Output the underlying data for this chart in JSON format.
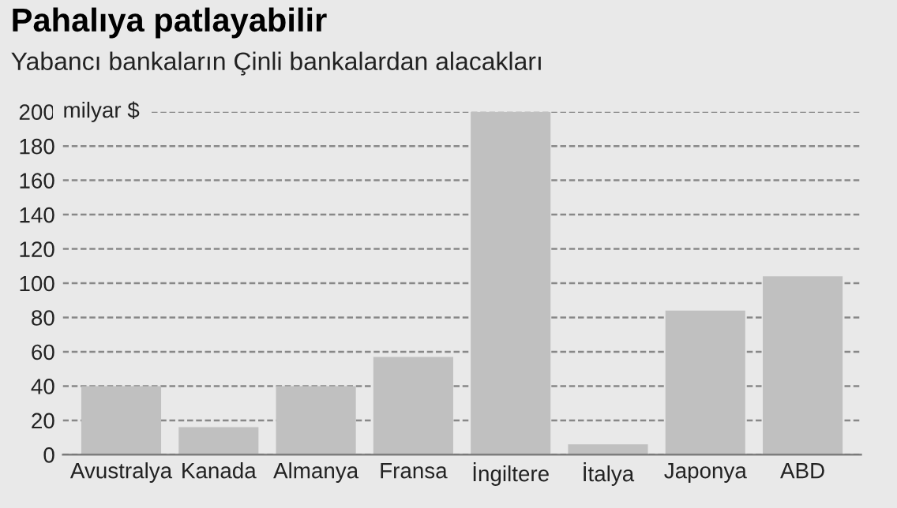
{
  "chart_data": {
    "type": "bar",
    "title": "Pahalıya patlayabilir",
    "subtitle": "Yabancı bankaların Çinli bankalardan alacakları",
    "ylabel": "milyar $",
    "categories": [
      "Avustralya",
      "Kanada",
      "Almanya",
      "Fransa",
      "İngiltere",
      "İtalya",
      "Japonya",
      "ABD"
    ],
    "values": [
      40,
      16,
      40,
      57,
      200,
      6,
      84,
      104
    ],
    "color": "#c0c0c0",
    "ylim": [
      0,
      200
    ],
    "yticks": [
      0,
      20,
      40,
      60,
      80,
      100,
      120,
      140,
      160,
      180,
      200
    ],
    "grid": "y",
    "legend": false
  }
}
